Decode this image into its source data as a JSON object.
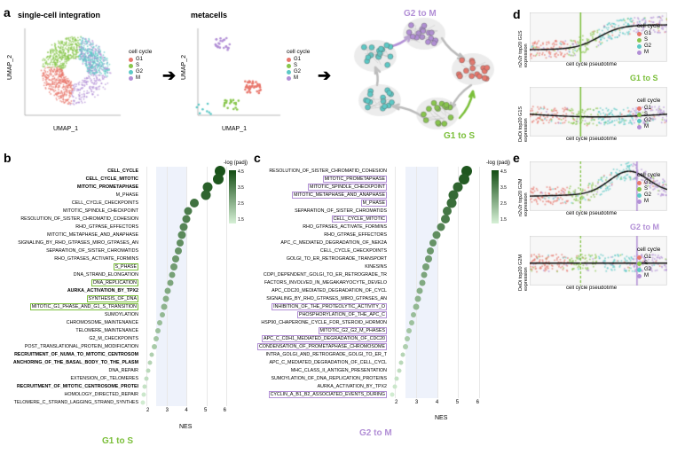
{
  "colors": {
    "G1": "#e8776c",
    "S": "#88c64c",
    "G2": "#5cc9c6",
    "M": "#b28fd6",
    "arrow": "#333333",
    "g1s_accent": "#7bbf3a",
    "g2m_accent": "#b28fd6",
    "gradient_low": "#d6f0d6",
    "gradient_high": "#134d13"
  },
  "labels": {
    "a": "a",
    "b": "b",
    "c": "c",
    "d": "d",
    "e": "e",
    "sc_title": "single-cell integration",
    "mc_title": "metacells",
    "umap1": "UMAP_1",
    "umap2": "UMAP_2",
    "cellcycle": "cell cycle",
    "G1": "G1",
    "S": "S",
    "G2": "G2",
    "M": "M",
    "g2m_arrow": "G2 to M",
    "g1s_arrow": "G1 to S",
    "nes": "NES",
    "logpadj": "-log (padj)",
    "g1s_title": "G1 to S",
    "g2m_title": "G2 to M",
    "pseudo_x": "cell cycle pseudotime",
    "d_y1": "n2v2r top20 G1S expression",
    "d_y2": "DeDi top20 G1S expression",
    "e_y1": "n2v2r top20 G2M expression",
    "e_y2": "DeDi top20 G2M expression"
  },
  "umap": {
    "sc_ticks_x": [
      "-5.0",
      "-2.5",
      "0.0",
      "2.5",
      "5.0"
    ],
    "sc_ticks_y": [
      "-4",
      "-2",
      "0",
      "2",
      "4",
      "6"
    ],
    "mc_ticks_x": [
      "-2",
      "-1",
      "0",
      "1"
    ],
    "mc_ticks_y": [
      "0",
      "1",
      "2",
      "3"
    ]
  },
  "gsea_b": {
    "nes_min": 2,
    "nes_max": 6,
    "pathways": [
      {
        "name": "CELL_CYCLE",
        "nes": 5.9,
        "log_padj": 4.9,
        "size": 12,
        "bold": true
      },
      {
        "name": "CELL_CYCLE_MITOTIC",
        "nes": 5.8,
        "log_padj": 4.8,
        "size": 12,
        "bold": true
      },
      {
        "name": "MITOTIC_PROMETAPHASE",
        "nes": 5.3,
        "log_padj": 4.6,
        "size": 11,
        "bold": true
      },
      {
        "name": "M_PHASE",
        "nes": 5.2,
        "log_padj": 4.5,
        "size": 11
      },
      {
        "name": "CELL_CYCLE_CHECKPOINTS",
        "nes": 4.6,
        "log_padj": 4.2,
        "size": 10
      },
      {
        "name": "MITOTIC_SPINDLE_CHECKPOINT",
        "nes": 4.3,
        "log_padj": 4.0,
        "size": 9
      },
      {
        "name": "RESOLUTION_OF_SISTER_CHROMATID_COHESION",
        "nes": 4.2,
        "log_padj": 3.9,
        "size": 9
      },
      {
        "name": "RHO_GTPASE_EFFECTORS",
        "nes": 4.1,
        "log_padj": 3.8,
        "size": 9
      },
      {
        "name": "MITOTIC_METAPHASE_AND_ANAPHASE",
        "nes": 4.0,
        "log_padj": 3.7,
        "size": 9
      },
      {
        "name": "SIGNALING_BY_RHO_GTPASES_MIRO_GTPASES_AN",
        "nes": 3.9,
        "log_padj": 3.6,
        "size": 8
      },
      {
        "name": "SEPARATION_OF_SISTER_CHROMATIDS",
        "nes": 3.8,
        "log_padj": 3.5,
        "size": 8
      },
      {
        "name": "RHO_GTPASES_ACTIVATE_FORMINS",
        "nes": 3.7,
        "log_padj": 3.4,
        "size": 8
      },
      {
        "name": "S_PHASE",
        "nes": 3.6,
        "log_padj": 3.3,
        "size": 8,
        "hl": "g1s"
      },
      {
        "name": "DNA_STRAND_ELONGATION",
        "nes": 3.5,
        "log_padj": 3.2,
        "size": 7
      },
      {
        "name": "DNA_REPLICATION",
        "nes": 3.4,
        "log_padj": 3.1,
        "size": 7,
        "hl": "g1s"
      },
      {
        "name": "AURKA_ACTIVATION_BY_TPX2",
        "nes": 3.3,
        "log_padj": 3.0,
        "size": 7,
        "bold": true
      },
      {
        "name": "SYNTHESIS_OF_DNA",
        "nes": 3.2,
        "log_padj": 2.9,
        "size": 7,
        "hl": "g1s"
      },
      {
        "name": "MITOTIC_G1_PHASE_AND_G1_S_TRANSITION",
        "nes": 3.1,
        "log_padj": 2.8,
        "size": 7,
        "hl": "g1s"
      },
      {
        "name": "SUMOYLATION",
        "nes": 3.0,
        "log_padj": 2.7,
        "size": 6
      },
      {
        "name": "CHROMOSOME_MAINTENANCE",
        "nes": 2.9,
        "log_padj": 2.6,
        "size": 6
      },
      {
        "name": "TELOMERE_MAINTENANCE",
        "nes": 2.8,
        "log_padj": 2.5,
        "size": 6
      },
      {
        "name": "G2_M_CHECKPOINTS",
        "nes": 2.7,
        "log_padj": 2.4,
        "size": 6
      },
      {
        "name": "POST_TRANSLATIONAL_PROTEIN_MODIFICATION",
        "nes": 2.6,
        "log_padj": 2.3,
        "size": 6
      },
      {
        "name": "RECRUITMENT_OF_NUMA_TO_MITOTIC_CENTROSOM",
        "nes": 2.5,
        "log_padj": 2.2,
        "size": 5,
        "bold": true
      },
      {
        "name": "ANCHORING_OF_THE_BASAL_BODY_TO_THE_PLASM",
        "nes": 2.4,
        "log_padj": 2.1,
        "size": 5,
        "bold": true
      },
      {
        "name": "DNA_REPAIR",
        "nes": 2.3,
        "log_padj": 2.0,
        "size": 5
      },
      {
        "name": "EXTENSION_OF_TELOMERES",
        "nes": 2.2,
        "log_padj": 1.9,
        "size": 5
      },
      {
        "name": "RECRUITMENT_OF_MITOTIC_CENTROSOME_PROTEI",
        "nes": 2.15,
        "log_padj": 1.8,
        "size": 5,
        "bold": true
      },
      {
        "name": "HOMOLOGY_DIRECTED_REPAIR",
        "nes": 2.1,
        "log_padj": 1.7,
        "size": 5
      },
      {
        "name": "TELOMERE_C_STRAND_LAGGING_STRAND_SYNTHES",
        "nes": 2.05,
        "log_padj": 1.6,
        "size": 5
      }
    ]
  },
  "gsea_c": {
    "nes_min": 2,
    "nes_max": 6,
    "pathways": [
      {
        "name": "RESOLUTION_OF_SISTER_CHROMATID_COHESION",
        "nes": 5.6,
        "log_padj": 4.8,
        "size": 12
      },
      {
        "name": "MITOTIC_PROMETAPHASE",
        "nes": 5.5,
        "log_padj": 4.7,
        "size": 12,
        "hl": "g2m"
      },
      {
        "name": "MITOTIC_SPINDLE_CHECKPOINT",
        "nes": 5.2,
        "log_padj": 4.5,
        "size": 11,
        "hl": "g2m"
      },
      {
        "name": "MITOTIC_METAPHASE_AND_ANAPHASE",
        "nes": 5.0,
        "log_padj": 4.4,
        "size": 11,
        "hl": "g2m"
      },
      {
        "name": "M_PHASE",
        "nes": 4.9,
        "log_padj": 4.3,
        "size": 11,
        "hl": "g2m"
      },
      {
        "name": "SEPARATION_OF_SISTER_CHROMATIDS",
        "nes": 4.7,
        "log_padj": 4.1,
        "size": 10
      },
      {
        "name": "CELL_CYCLE_MITOTIC",
        "nes": 4.6,
        "log_padj": 4.0,
        "size": 10,
        "hl": "g2m"
      },
      {
        "name": "RHO_GTPASES_ACTIVATE_FORMINS",
        "nes": 4.4,
        "log_padj": 3.8,
        "size": 9
      },
      {
        "name": "RHO_GTPASE_EFFECTORS",
        "nes": 4.2,
        "log_padj": 3.6,
        "size": 9
      },
      {
        "name": "APC_C_MEDIATED_DEGRADATION_OF_NEK2A",
        "nes": 4.0,
        "log_padj": 3.5,
        "size": 8
      },
      {
        "name": "CELL_CYCLE_CHECKPOINTS",
        "nes": 3.9,
        "log_padj": 3.4,
        "size": 8
      },
      {
        "name": "GOLGI_TO_ER_RETROGRADE_TRANSPORT",
        "nes": 3.8,
        "log_padj": 3.3,
        "size": 8
      },
      {
        "name": "KINESINS",
        "nes": 3.7,
        "log_padj": 3.2,
        "size": 8
      },
      {
        "name": "COPI_DEPENDENT_GOLGI_TO_ER_RETROGRADE_TR",
        "nes": 3.6,
        "log_padj": 3.1,
        "size": 7
      },
      {
        "name": "FACTORS_INVOLVED_IN_MEGAKARYOCYTE_DEVELO",
        "nes": 3.5,
        "log_padj": 3.0,
        "size": 7
      },
      {
        "name": "APC_CDC20_MEDIATED_DEGRADATION_OF_CYCL",
        "nes": 3.4,
        "log_padj": 2.9,
        "size": 7
      },
      {
        "name": "SIGNALING_BY_RHO_GTPASES_MIRO_GTPASES_AN",
        "nes": 3.3,
        "log_padj": 2.8,
        "size": 7
      },
      {
        "name": "INHIBITION_OF_THE_PROTEOLYTIC_ACTIVITY_O",
        "nes": 3.2,
        "log_padj": 2.7,
        "size": 7,
        "hl": "g2m"
      },
      {
        "name": "PHOSPHORYLATION_OF_THE_APC_C",
        "nes": 3.1,
        "log_padj": 2.6,
        "size": 6,
        "hl": "g2m"
      },
      {
        "name": "HSP90_CHAPERONE_CYCLE_FOR_STEROID_HORMON",
        "nes": 3.0,
        "log_padj": 2.5,
        "size": 6
      },
      {
        "name": "MITOTIC_G2_G2_M_PHASES",
        "nes": 2.9,
        "log_padj": 2.4,
        "size": 6,
        "hl": "g2m"
      },
      {
        "name": "APC_C_CDH1_MEDIATED_DEGRADATION_OF_CDC20",
        "nes": 2.8,
        "log_padj": 2.3,
        "size": 6,
        "hl": "g2m"
      },
      {
        "name": "CONDENSATION_OF_PROMETAPHASE_CHROMOSOME",
        "nes": 2.7,
        "log_padj": 2.2,
        "size": 6,
        "hl": "g2m"
      },
      {
        "name": "INTRA_GOLGI_AND_RETROGRADE_GOLGI_TO_ER_T",
        "nes": 2.6,
        "log_padj": 2.1,
        "size": 5
      },
      {
        "name": "APC_C_MEDIATED_DEGRADATION_OF_CELL_CYCL",
        "nes": 2.5,
        "log_padj": 2.0,
        "size": 5
      },
      {
        "name": "MHC_CLASS_II_ANTIGEN_PRESENTATION",
        "nes": 2.4,
        "log_padj": 1.9,
        "size": 5
      },
      {
        "name": "SUMOYLATION_OF_DNA_REPLICATION_PROTEINS",
        "nes": 2.3,
        "log_padj": 1.8,
        "size": 5
      },
      {
        "name": "AURKA_ACTIVATION_BY_TPX2",
        "nes": 2.2,
        "log_padj": 1.7,
        "size": 5
      },
      {
        "name": "CYCLIN_A_B1_B2_ASSOCIATED_EVENTS_DURING",
        "nes": 2.1,
        "log_padj": 1.6,
        "size": 5,
        "hl": "g2m"
      }
    ]
  },
  "gsea_colorbar": {
    "ticks": [
      "1.5",
      "2.5",
      "3.5",
      "4.5"
    ]
  },
  "pseudotime": {
    "d1": {
      "vline_frac": 0.37,
      "vline_color": "#7bbf3a",
      "curve_type": "sigmoid_up"
    },
    "d2": {
      "vline_frac": 0.37,
      "vline_color": "#7bbf3a",
      "curve_type": "flat_dip"
    },
    "e1": {
      "vline1_frac": 0.37,
      "vline1_color": "#7bbf3a",
      "vline2_frac": 0.78,
      "vline2_color": "#b28fd6",
      "curve_type": "peak"
    },
    "e2": {
      "vline1_frac": 0.37,
      "vline1_color": "#7bbf3a",
      "vline2_frac": 0.78,
      "vline2_color": "#b28fd6",
      "curve_type": "flat"
    }
  }
}
